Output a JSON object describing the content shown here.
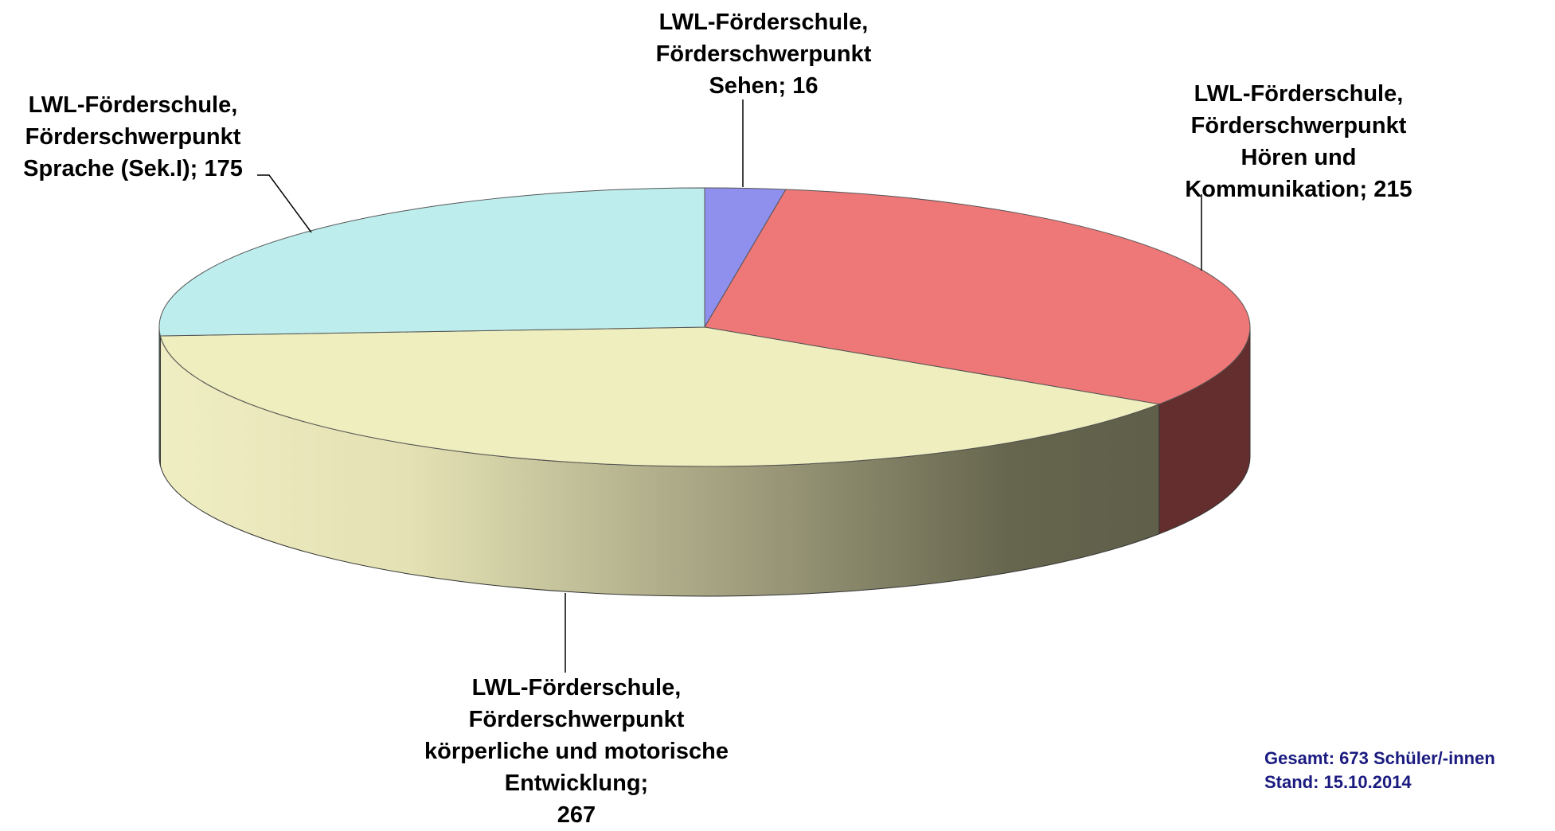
{
  "chart_data": {
    "type": "pie3d",
    "categories": [
      "LWL-Förderschule, Förderschwerpunkt Sehen;",
      "LWL-Förderschule, Förderschwerpunkt Hören und Kommunikation;",
      "LWL-Förderschule, Förderschwerpunkt körperliche und motorische Entwicklung;",
      "LWL-Förderschule, Förderschwerpunkt Sprache (Sek.I);"
    ],
    "values": [
      16,
      215,
      267,
      175
    ],
    "colors": [
      "#8f8fee",
      "#ee7777",
      "#eeeebe",
      "#bdeded"
    ],
    "annotations": [
      "Gesamt: 673 Schüler/-innen",
      "Stand: 15.10.2014"
    ]
  }
}
